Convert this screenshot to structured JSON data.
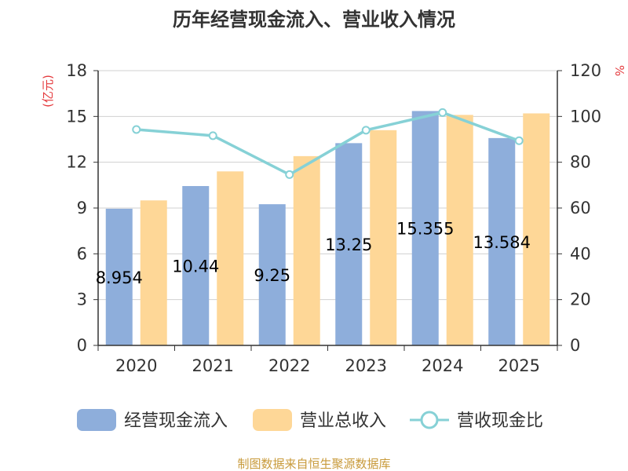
{
  "chart_data": {
    "type": "bar",
    "title": "历年经营现金流入、营业收入情况",
    "categories": [
      "2020",
      "2021",
      "2022",
      "2023",
      "2024",
      "2025"
    ],
    "y_left": {
      "unit": "(亿元)",
      "ylim": [
        0,
        18
      ],
      "ticks": [
        0,
        3,
        6,
        9,
        12,
        15,
        18
      ]
    },
    "y_right": {
      "unit": "%",
      "ylim": [
        0,
        120
      ],
      "ticks": [
        0,
        20,
        40,
        60,
        80,
        100,
        120
      ]
    },
    "series": [
      {
        "name": "经营现金流入",
        "type": "bar",
        "axis": "left",
        "color": "#8eaedb",
        "values": [
          8.954,
          10.44,
          9.25,
          13.25,
          15.355,
          13.584
        ],
        "labels": [
          "8.954",
          "10.44",
          "9.25",
          "13.25",
          "15.355",
          "13.584"
        ]
      },
      {
        "name": "营业总收入",
        "type": "bar",
        "axis": "left",
        "color": "#fed797",
        "values": [
          9.5,
          11.4,
          12.4,
          14.1,
          15.1,
          15.2
        ]
      },
      {
        "name": "营收现金比",
        "type": "line",
        "axis": "right",
        "color": "#86d1d6",
        "values": [
          94.3,
          91.6,
          74.6,
          94.0,
          101.7,
          89.4
        ]
      }
    ],
    "grid": true,
    "legend_position": "bottom"
  },
  "source": "制图数据来自恒生聚源数据库"
}
